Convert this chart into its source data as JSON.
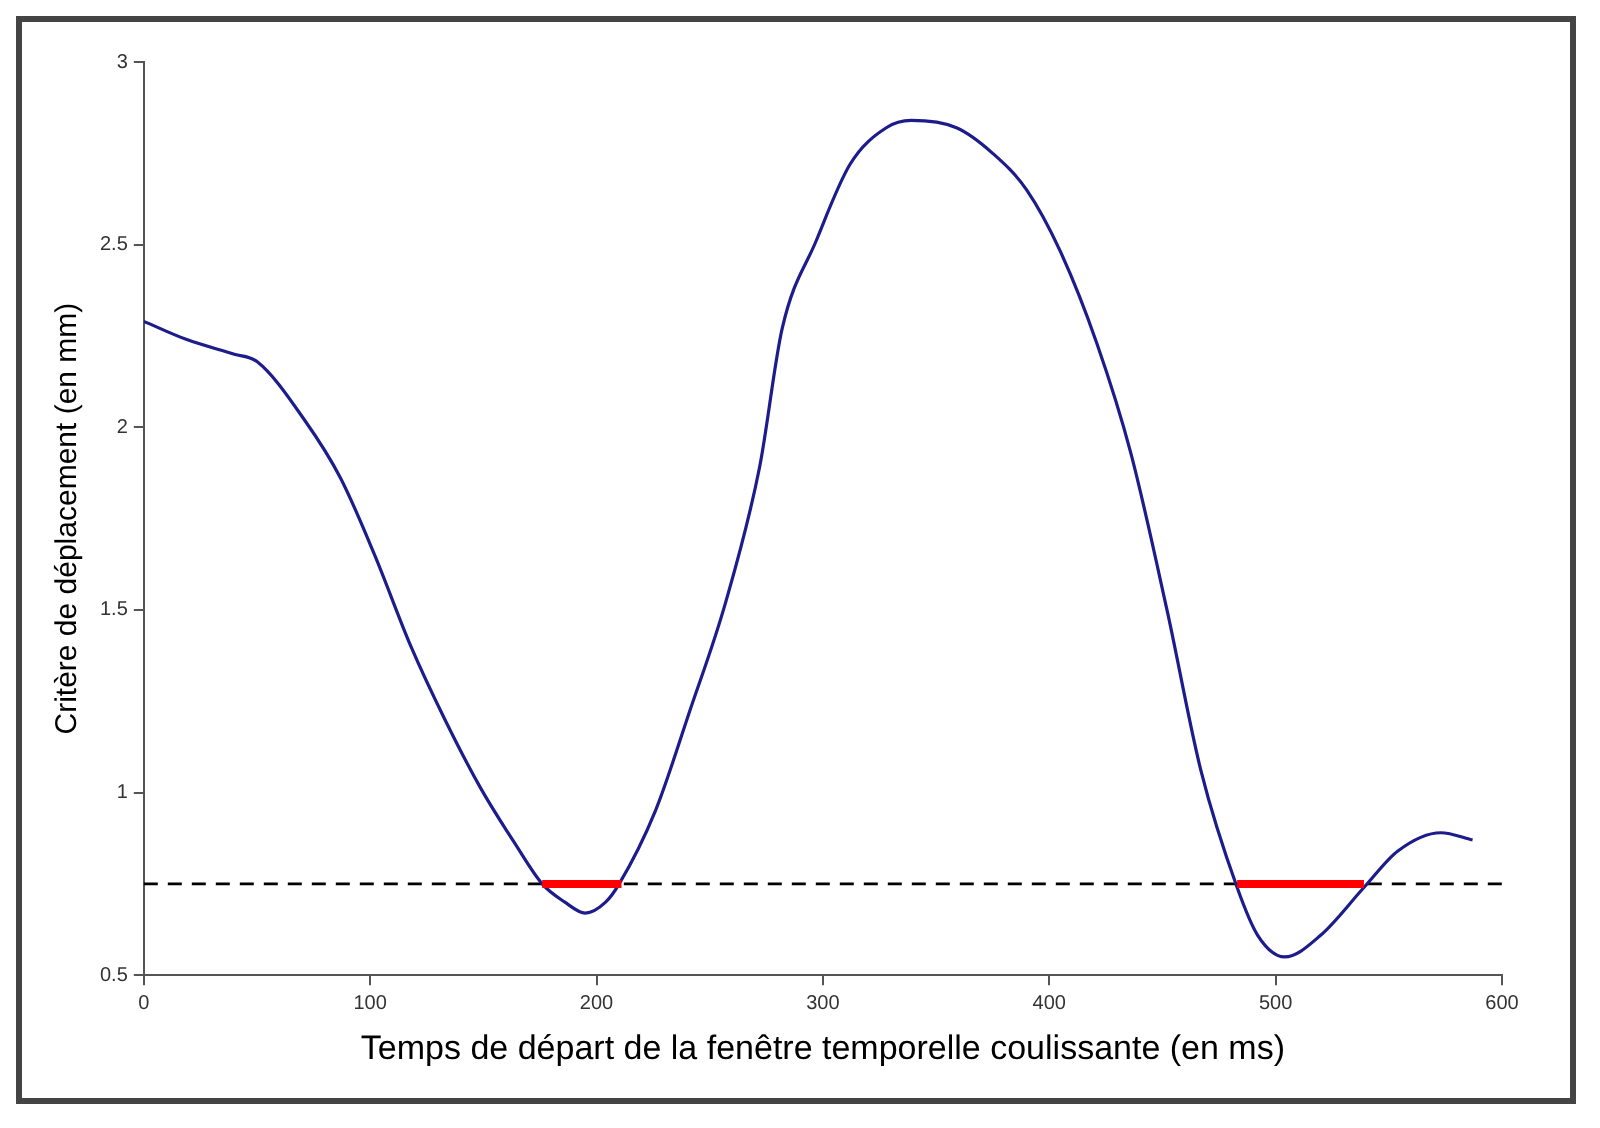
{
  "chart_data": {
    "type": "line",
    "xlabel": "Temps de départ de la fenêtre temporelle coulissante (en ms)",
    "ylabel": "Critère de déplacement (en mm)",
    "xlim": [
      0,
      600
    ],
    "xticks": [
      0,
      100,
      200,
      300,
      400,
      500,
      600
    ],
    "ylim": [
      0.5,
      3
    ],
    "yticks": [
      0.5,
      1,
      1.5,
      2,
      2.5,
      3
    ],
    "grid": false,
    "legend": false,
    "marker": "none",
    "line_style": "solid",
    "series": [
      {
        "color": "#1c1c8c",
        "x": [
          0,
          19,
          40,
          50,
          71,
          87,
          102,
          118,
          133,
          149,
          164,
          176,
          186,
          195,
          204,
          210,
          226,
          241,
          257,
          272,
          282,
          297,
          312,
          328,
          339,
          359,
          375,
          390,
          405,
          421,
          436,
          452,
          467,
          483,
          492,
          504,
          520,
          539,
          554,
          573,
          587
        ],
        "values": [
          2.29,
          2.24,
          2.2,
          2.18,
          2.02,
          1.86,
          1.65,
          1.4,
          1.2,
          1.01,
          0.86,
          0.75,
          0.7,
          0.67,
          0.7,
          0.75,
          0.95,
          1.22,
          1.52,
          1.89,
          2.27,
          2.51,
          2.72,
          2.82,
          2.84,
          2.82,
          2.75,
          2.65,
          2.48,
          2.23,
          1.93,
          1.5,
          1.06,
          0.74,
          0.61,
          0.55,
          0.61,
          0.74,
          0.84,
          0.89,
          0.87
        ]
      },
      {
        "color": "#ff0000",
        "x": [
          176,
          211
        ],
        "values": [
          0.75,
          0.75
        ]
      },
      {
        "color": "#ff0000",
        "x": [
          483,
          539
        ],
        "values": [
          0.75,
          0.75
        ]
      }
    ],
    "ref_lines": [
      {
        "axis": "y",
        "value": 0.75,
        "color": "#000000",
        "line_style": "dashed"
      }
    ]
  }
}
